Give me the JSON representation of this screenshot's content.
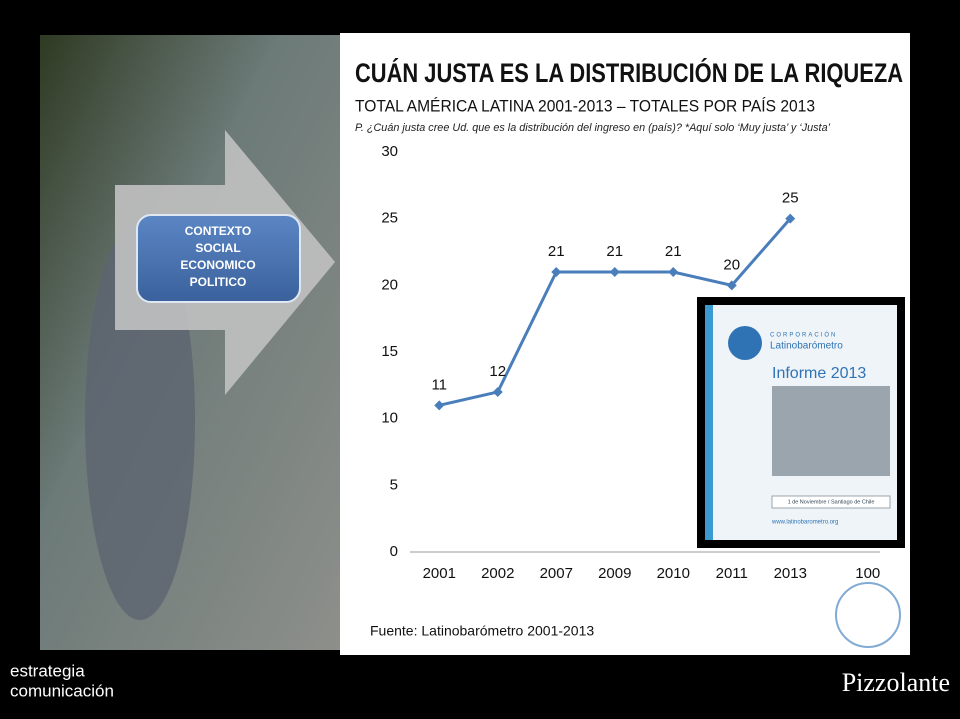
{
  "chart_data": {
    "type": "line",
    "title": "CUÁN JUSTA ES LA DISTRIBUCIÓN DE LA RIQUEZA",
    "subtitle": "TOTAL AMÉRICA LATINA 2001-2013 – TOTALES POR PAÍS 2013",
    "question": "P. ¿Cuán justa cree Ud. que es la distribución del ingreso en (país)? *Aquí solo ‘Muy justa’ y ‘Justa’",
    "source": "Fuente: Latinobarómetro 2001-2013",
    "categories": [
      "2001",
      "2002",
      "2007",
      "2009",
      "2010",
      "2011",
      "2013",
      "100"
    ],
    "values": [
      11,
      12,
      21,
      21,
      21,
      20,
      25,
      null
    ],
    "color": "#4a7ebb",
    "ylim": [
      0,
      30
    ],
    "yticks": [
      0,
      5,
      10,
      15,
      20,
      25,
      30
    ],
    "grid": false
  },
  "slide": {
    "callout": [
      "CONTEXTO",
      "SOCIAL",
      "ECONOMICO",
      "POLITICO"
    ],
    "report": {
      "org_small": "CORPORACIÓN",
      "org": "Latinobarómetro",
      "title": "Informe 2013",
      "date": "1 de Noviembre / Santiago de Chile",
      "url": "www.latinobarometro.org"
    },
    "logo_left": [
      "estrategia",
      "comunicación"
    ],
    "logo_right": "Pizzolante"
  }
}
